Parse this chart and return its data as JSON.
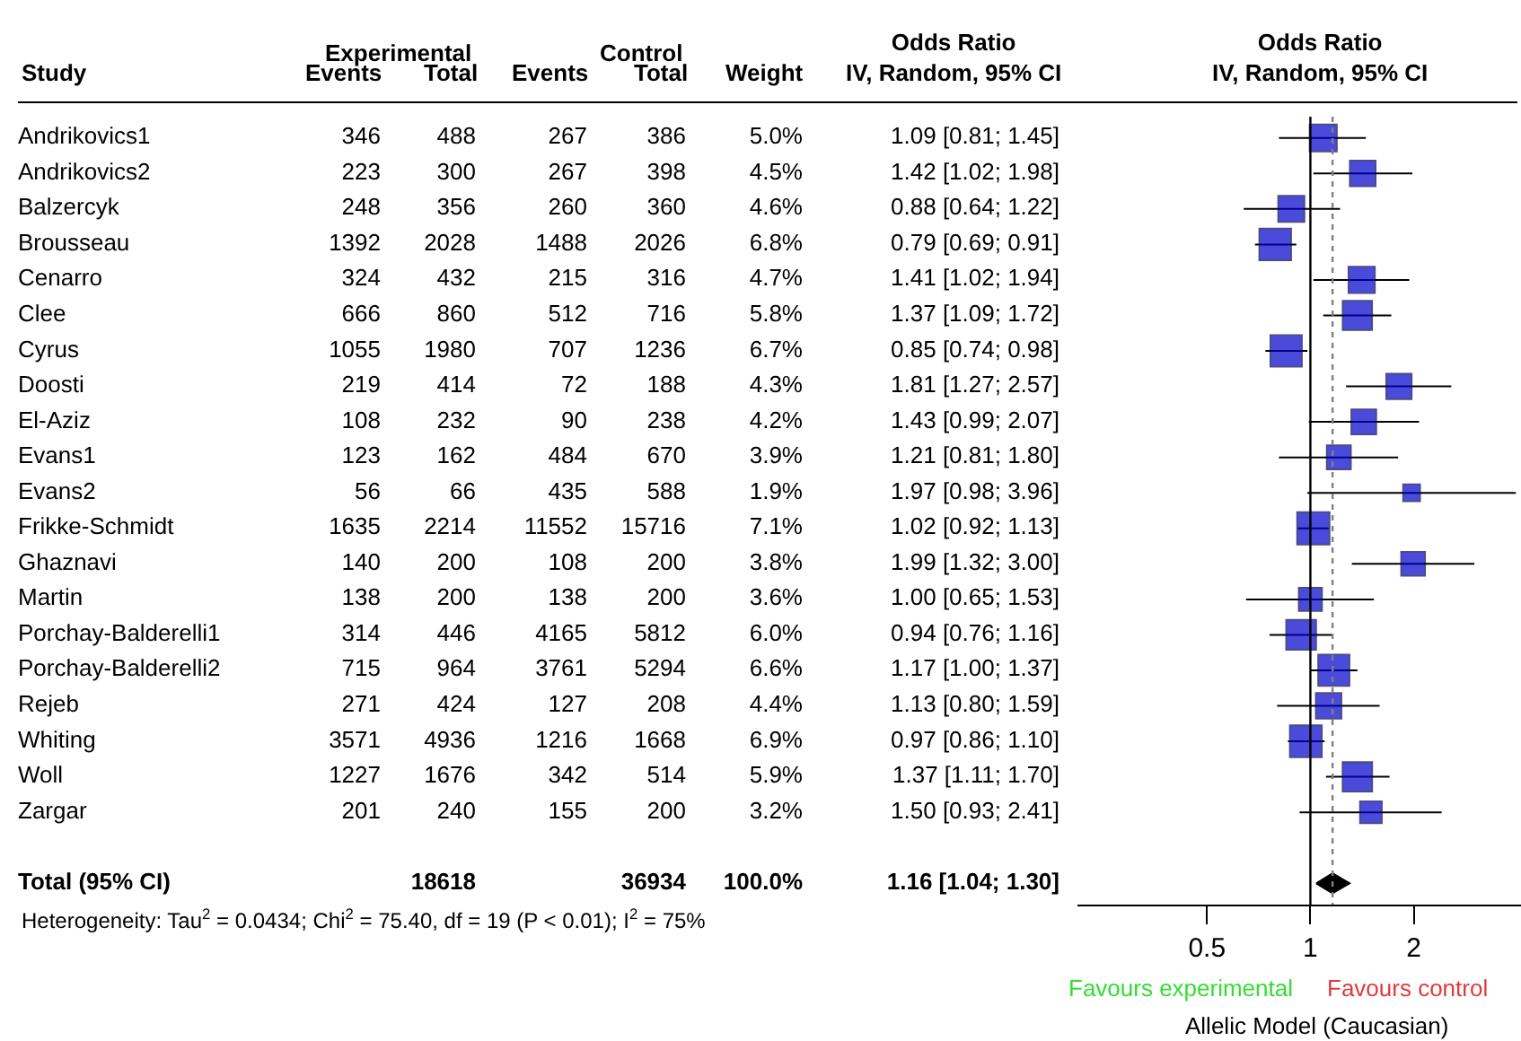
{
  "chart_data": [
    {
      "type": "other",
      "ylabel": "Study",
      "categories": [
        "Andrikovics1",
        "Andrikovics2",
        "Balzercyk",
        "Brousseau",
        "Cenarro",
        "Clee",
        "Cyrus",
        "Doosti",
        "El-Aziz",
        "Evans1",
        "Evans2",
        "Frikke-Schmidt",
        "Ghaznavi",
        "Martin",
        "Porchay-Balderelli1",
        "Porchay-Balderelli2",
        "Rejeb",
        "Whiting",
        "Woll",
        "Zargar",
        null,
        "Total (95% CI)"
      ],
      "annotations": [
        "Experimental",
        "Control",
        "Heterogeneity: Tau$^{2}$ = 0.0434; Chi$^{2}$ = 75.40, df = 19 (P < 0.01); I$^{2}$ = 75%"
      ],
      "series": [
        {
          "name": "Events",
          "values": [
            346,
            223,
            248,
            1392,
            324,
            666,
            1055,
            219,
            108,
            123,
            56,
            1635,
            140,
            138,
            314,
            715,
            271,
            3571,
            1227,
            201,
            null,
            null
          ],
          "value_labels": [
            "346",
            "223",
            "248",
            "1392",
            "324",
            "666",
            "1055",
            "219",
            "108",
            "123",
            "56",
            "1635",
            "140",
            "138",
            "314",
            "715",
            "271",
            "3571",
            "1227",
            "201",
            null,
            null
          ]
        },
        {
          "name": "Total",
          "values": [
            488,
            300,
            356,
            2028,
            432,
            860,
            1980,
            414,
            232,
            162,
            66,
            2214,
            200,
            200,
            446,
            964,
            424,
            4936,
            1676,
            240,
            null,
            18618
          ],
          "value_labels": [
            "488",
            "300",
            "356",
            "2028",
            "432",
            "860",
            "1980",
            "414",
            "232",
            "162",
            "66",
            "2214",
            "200",
            "200",
            "446",
            "964",
            "424",
            "4936",
            "1676",
            "240",
            null,
            "18618"
          ]
        },
        {
          "name": "Events",
          "values": [
            267,
            267,
            260,
            1488,
            215,
            512,
            707,
            72,
            90,
            484,
            435,
            11552,
            108,
            138,
            4165,
            3761,
            127,
            1216,
            342,
            155,
            null,
            null
          ],
          "value_labels": [
            "267",
            "267",
            "260",
            "1488",
            "215",
            "512",
            "707",
            "72",
            "90",
            "484",
            "435",
            "11552",
            "108",
            "138",
            "4165",
            "3761",
            "127",
            "1216",
            "342",
            "155",
            null,
            null
          ]
        },
        {
          "name": "Total",
          "values": [
            386,
            398,
            360,
            2026,
            316,
            716,
            1236,
            188,
            238,
            670,
            588,
            15716,
            200,
            200,
            5812,
            5294,
            208,
            1668,
            514,
            200,
            null,
            36934
          ],
          "value_labels": [
            "386",
            "398",
            "360",
            "2026",
            "316",
            "716",
            "1236",
            "188",
            "238",
            "670",
            "588",
            "15716",
            "200",
            "200",
            "5812",
            "5294",
            "208",
            "1668",
            "514",
            "200",
            null,
            "36934"
          ]
        },
        {
          "name": "Weight",
          "values": [
            5.0,
            4.5,
            4.6,
            6.8,
            4.7,
            5.8,
            6.7,
            4.3,
            4.2,
            3.9,
            1.9,
            7.1,
            3.8,
            3.6,
            6.0,
            6.6,
            4.4,
            6.9,
            5.9,
            3.2,
            null,
            100.0
          ],
          "value_labels": [
            "5.0%",
            "4.5%",
            "4.6%",
            "6.8%",
            "4.7%",
            "5.8%",
            "6.7%",
            "4.3%",
            "4.2%",
            "3.9%",
            "1.9%",
            "7.1%",
            "3.8%",
            "3.6%",
            "6.0%",
            "6.6%",
            "4.4%",
            "6.9%",
            "5.9%",
            "3.2%",
            null,
            "100.0%"
          ]
        },
        {
          "name": "Odds Ratio\nIV, Random, 95% CI",
          "values": [
            1.09,
            1.42,
            0.88,
            0.79,
            1.41,
            1.37,
            0.85,
            1.81,
            1.43,
            1.21,
            1.97,
            1.02,
            1.99,
            1.0,
            0.94,
            1.17,
            1.13,
            0.97,
            1.37,
            1.5,
            null,
            1.16
          ],
          "value_labels": [
            "1.09 [0.81; 1.45]",
            "1.42 [1.02; 1.98]",
            "0.88 [0.64; 1.22]",
            "0.79 [0.69; 0.91]",
            "1.41 [1.02; 1.94]",
            "1.37 [1.09; 1.72]",
            "0.85 [0.74; 0.98]",
            "1.81 [1.27; 2.57]",
            "1.43 [0.99; 2.07]",
            "1.21 [0.81; 1.80]",
            "1.97 [0.98; 3.96]",
            "1.02 [0.92; 1.13]",
            "1.99 [1.32; 3.00]",
            "1.00 [0.65; 1.53]",
            "0.94 [0.76; 1.16]",
            "1.17 [1.00; 1.37]",
            "1.13 [0.80; 1.59]",
            "0.97 [0.86; 1.10]",
            "1.37 [1.11; 1.70]",
            "1.50 [0.93; 2.41]",
            null,
            "1.16 [1.04; 1.30]"
          ]
        }
      ]
    },
    {
      "type": "scatter",
      "orientation": "horizontal",
      "title": "Odds Ratio\nIV, Random, 95% CI",
      "xlabel": "Allelic Model (Caucasian)",
      "categories": [
        null,
        null,
        null,
        null,
        null,
        null,
        null,
        null,
        null,
        null,
        null,
        null,
        null,
        null,
        null,
        null,
        null,
        null,
        null,
        null,
        null,
        null
      ],
      "log": "x",
      "xlim": [
        0.21,
        4.1
      ],
      "xticks": [
        0.5,
        1,
        2
      ],
      "tick_labels": "x",
      "legend": false,
      "annotations": [
        "Favours experimental",
        "Favours control"
      ],
      "ref_lines": [
        {
          "axis": "x",
          "value": 1,
          "color": "#000000",
          "line_style": "solid"
        },
        {
          "axis": "x",
          "value": 1.16,
          "color": "#808080",
          "line_style": "dotted"
        }
      ],
      "series": [
        {
          "type": "bubble",
          "marker": "square",
          "color": "#0000cc",
          "sizes": [
            0.7,
            0.63,
            0.65,
            0.96,
            0.66,
            0.82,
            0.94,
            0.61,
            0.59,
            0.55,
            0.27,
            1,
            0.54,
            0.51,
            0.85,
            0.93,
            0.62,
            0.97,
            0.83,
            0.45,
            null,
            null
          ],
          "values": [
            1.09,
            1.42,
            0.88,
            0.79,
            1.41,
            1.37,
            0.85,
            1.81,
            1.43,
            1.21,
            1.97,
            1.02,
            1.99,
            1.0,
            0.94,
            1.17,
            1.13,
            0.97,
            1.37,
            1.5,
            null,
            null
          ],
          "errors": [
            [
              0.81,
              1.45
            ],
            [
              1.02,
              1.98
            ],
            [
              0.64,
              1.22
            ],
            [
              0.69,
              0.91
            ],
            [
              1.02,
              1.94
            ],
            [
              1.09,
              1.72
            ],
            [
              0.74,
              0.98
            ],
            [
              1.27,
              2.57
            ],
            [
              0.99,
              2.07
            ],
            [
              0.81,
              1.8
            ],
            [
              0.98,
              3.96
            ],
            [
              0.92,
              1.13
            ],
            [
              1.32,
              3.0
            ],
            [
              0.65,
              1.53
            ],
            [
              0.76,
              1.16
            ],
            [
              1.0,
              1.37
            ],
            [
              0.8,
              1.59
            ],
            [
              0.86,
              1.1
            ],
            [
              1.11,
              1.7
            ],
            [
              0.93,
              2.41
            ],
            null,
            null
          ]
        },
        {
          "type": "scatter",
          "marker": "diamond",
          "color": "#000000",
          "values": [
            null,
            null,
            null,
            null,
            null,
            null,
            null,
            null,
            null,
            null,
            null,
            null,
            null,
            null,
            null,
            null,
            null,
            null,
            null,
            null,
            null,
            1.16
          ],
          "errors": [
            null,
            null,
            null,
            null,
            null,
            null,
            null,
            null,
            null,
            null,
            null,
            null,
            null,
            null,
            null,
            null,
            null,
            null,
            null,
            null,
            null,
            [
              1.04,
              1.3
            ]
          ]
        }
      ]
    }
  ]
}
